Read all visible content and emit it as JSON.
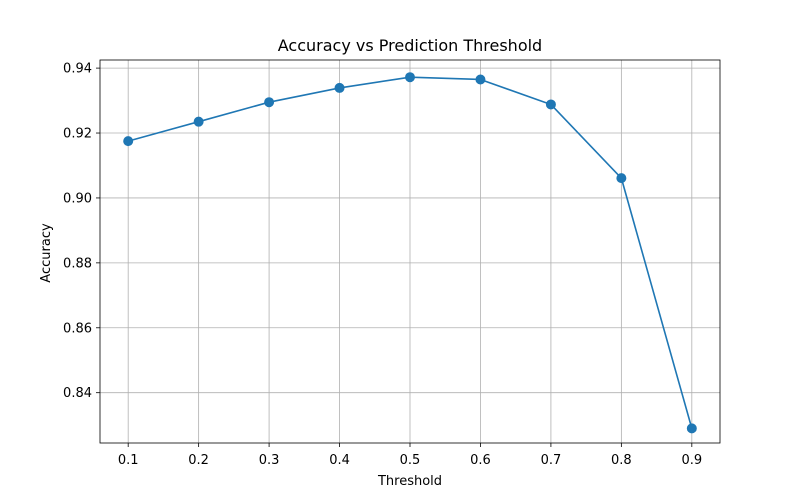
{
  "chart_data": {
    "type": "line",
    "title": "Accuracy vs Prediction Threshold",
    "xlabel": "Threshold",
    "ylabel": "Accuracy",
    "x": [
      0.1,
      0.2,
      0.3,
      0.4,
      0.5,
      0.6,
      0.7,
      0.8,
      0.9
    ],
    "series": [
      {
        "values": [
          0.9175,
          0.9235,
          0.9295,
          0.9339,
          0.9372,
          0.9365,
          0.9288,
          0.9061,
          0.829
        ],
        "color": "#1f77b4",
        "marker": "circle"
      }
    ],
    "xlim": [
      0.06,
      0.94
    ],
    "ylim": [
      0.8245,
      0.9425
    ],
    "xticks": [
      0.1,
      0.2,
      0.3,
      0.4,
      0.5,
      0.6,
      0.7,
      0.8,
      0.9
    ],
    "xtick_labels": [
      "0.1",
      "0.2",
      "0.3",
      "0.4",
      "0.5",
      "0.6",
      "0.7",
      "0.8",
      "0.9"
    ],
    "yticks": [
      0.84,
      0.86,
      0.88,
      0.9,
      0.92,
      0.94
    ],
    "ytick_labels": [
      "0.84",
      "0.86",
      "0.88",
      "0.90",
      "0.92",
      "0.94"
    ],
    "grid": true,
    "grid_color": "#b0b0b0"
  }
}
